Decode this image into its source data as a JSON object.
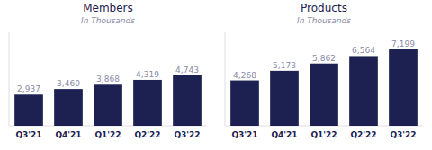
{
  "chart_data": [
    {
      "type": "bar",
      "title": "Members",
      "subtitle": "In Thousands",
      "categories": [
        "Q3'21",
        "Q4'21",
        "Q1'22",
        "Q2'22",
        "Q3'22"
      ],
      "values": [
        2937,
        3460,
        3868,
        4319,
        4743
      ],
      "value_labels": [
        "2,937",
        "3,460",
        "3,868",
        "4,319",
        "4,743"
      ],
      "color": "#1c2151",
      "ylim": [
        0,
        8800
      ],
      "data_labels": true,
      "tick_labels": "x",
      "grid": false
    },
    {
      "type": "bar",
      "title": "Products",
      "subtitle": "In Thousands",
      "categories": [
        "Q3'21",
        "Q4'21",
        "Q1'22",
        "Q2'22",
        "Q3'22"
      ],
      "values": [
        4268,
        5173,
        5862,
        6564,
        7199
      ],
      "value_labels": [
        "4,268",
        "5,173",
        "5,862",
        "6,564",
        "7,199"
      ],
      "color": "#1c2151",
      "ylim": [
        0,
        8800
      ],
      "data_labels": true,
      "tick_labels": "x",
      "grid": false
    }
  ]
}
